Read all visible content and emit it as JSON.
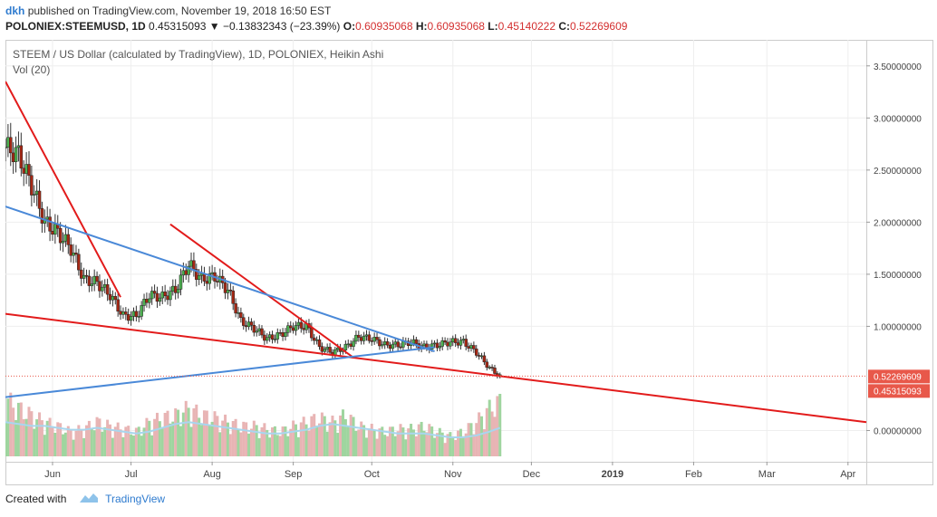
{
  "header": {
    "author": "dkh",
    "published": "published on TradingView.com, November 19, 2018 16:50 EST",
    "symbol": "POLONIEX:STEEMUSD, 1D",
    "price": "0.45315093",
    "change": "▼ −0.13832343 (−23.39%)",
    "o_label": "O:",
    "o_value": "0.60935068",
    "h_label": "H:",
    "h_value": "0.60935068",
    "l_label": "L:",
    "l_value": "0.45140222",
    "c_label": "C:",
    "c_value": "0.52269609"
  },
  "footer": {
    "created_with": "Created with",
    "brand": "TradingView"
  },
  "colors": {
    "up": "#4caf50",
    "down": "#a52714",
    "vol_up": "#9fd59f",
    "vol_down": "#e8b4b4",
    "vol_ma": "#a8d6ee",
    "trend_red": "#e21b1b",
    "trend_blue": "#4a89d8",
    "badge": "#e8584a",
    "grid": "#eeeeee"
  },
  "chart_data": {
    "type": "candlestick",
    "title": "STEEM / US Dollar (calculated by TradingView), 1D, POLONIEX, Heikin Ashi",
    "volume_label": "Vol (20)",
    "x_ticks": [
      "Jun",
      "Jul",
      "Aug",
      "Sep",
      "Oct",
      "Nov",
      "Dec",
      "2019",
      "Feb",
      "Mar",
      "Apr"
    ],
    "y_ticks": [
      "3.50000000",
      "3.00000000",
      "2.50000000",
      "2.00000000",
      "1.50000000",
      "1.00000000",
      "0.00000000"
    ],
    "y_tick_values": [
      3.5,
      3.0,
      2.5,
      2.0,
      1.5,
      1.0,
      0.0
    ],
    "ylim": [
      -0.3,
      3.75
    ],
    "price_badges": [
      {
        "label": "0.52269609",
        "value": 0.5227
      },
      {
        "label": "0.45315093",
        "value": 0.4532
      }
    ],
    "x_range": [
      "2018-05-14",
      "2019-04-08"
    ],
    "close_series_dates": [
      "2018-05-14",
      "2018-05-19",
      "2018-05-24",
      "2018-05-29",
      "2018-06-03",
      "2018-06-08",
      "2018-06-13",
      "2018-06-18",
      "2018-06-23",
      "2018-06-28",
      "2018-07-03",
      "2018-07-08",
      "2018-07-13",
      "2018-07-18",
      "2018-07-23",
      "2018-07-28",
      "2018-08-02",
      "2018-08-07",
      "2018-08-12",
      "2018-08-17",
      "2018-08-22",
      "2018-08-27",
      "2018-09-01",
      "2018-09-06",
      "2018-09-11",
      "2018-09-16",
      "2018-09-21",
      "2018-09-26",
      "2018-10-01",
      "2018-10-06",
      "2018-10-11",
      "2018-10-16",
      "2018-10-21",
      "2018-10-26",
      "2018-10-31",
      "2018-11-05",
      "2018-11-10",
      "2018-11-15",
      "2018-11-19"
    ],
    "close_series": [
      2.72,
      2.65,
      2.35,
      2.0,
      1.9,
      1.75,
      1.45,
      1.42,
      1.3,
      1.1,
      1.1,
      1.3,
      1.28,
      1.35,
      1.6,
      1.45,
      1.48,
      1.35,
      1.05,
      0.98,
      0.88,
      0.92,
      1.0,
      1.0,
      0.8,
      0.75,
      0.8,
      0.9,
      0.88,
      0.82,
      0.82,
      0.85,
      0.8,
      0.82,
      0.85,
      0.85,
      0.75,
      0.6,
      0.52
    ],
    "volume_series": [
      0.42,
      0.35,
      0.3,
      0.25,
      0.22,
      0.18,
      0.2,
      0.25,
      0.22,
      0.2,
      0.18,
      0.25,
      0.28,
      0.3,
      0.35,
      0.3,
      0.28,
      0.25,
      0.22,
      0.22,
      0.2,
      0.18,
      0.22,
      0.25,
      0.28,
      0.25,
      0.3,
      0.22,
      0.2,
      0.18,
      0.2,
      0.2,
      0.22,
      0.18,
      0.15,
      0.18,
      0.25,
      0.35,
      0.4
    ],
    "vol_ma_series": [
      0.18,
      0.17,
      0.16,
      0.16,
      0.15,
      0.14,
      0.14,
      0.15,
      0.14,
      0.13,
      0.12,
      0.13,
      0.15,
      0.17,
      0.18,
      0.17,
      0.16,
      0.15,
      0.14,
      0.13,
      0.12,
      0.12,
      0.13,
      0.14,
      0.16,
      0.17,
      0.16,
      0.15,
      0.14,
      0.13,
      0.12,
      0.12,
      0.12,
      0.11,
      0.1,
      0.1,
      0.11,
      0.13,
      0.15
    ],
    "trendlines": [
      {
        "color": "red",
        "from": [
          "2018-05-14",
          3.35
        ],
        "to": [
          "2018-06-27",
          1.28
        ]
      },
      {
        "color": "red",
        "from": [
          "2018-07-16",
          1.98
        ],
        "to": [
          "2018-09-24",
          0.7
        ]
      },
      {
        "color": "red",
        "from": [
          "2018-05-14",
          1.12
        ],
        "to": [
          "2019-04-08",
          0.08
        ]
      },
      {
        "color": "blue",
        "from": [
          "2018-05-14",
          2.15
        ],
        "to": [
          "2018-10-25",
          0.76
        ]
      },
      {
        "color": "blue",
        "from": [
          "2018-05-14",
          0.32
        ],
        "to": [
          "2018-10-25",
          0.8
        ]
      }
    ]
  }
}
